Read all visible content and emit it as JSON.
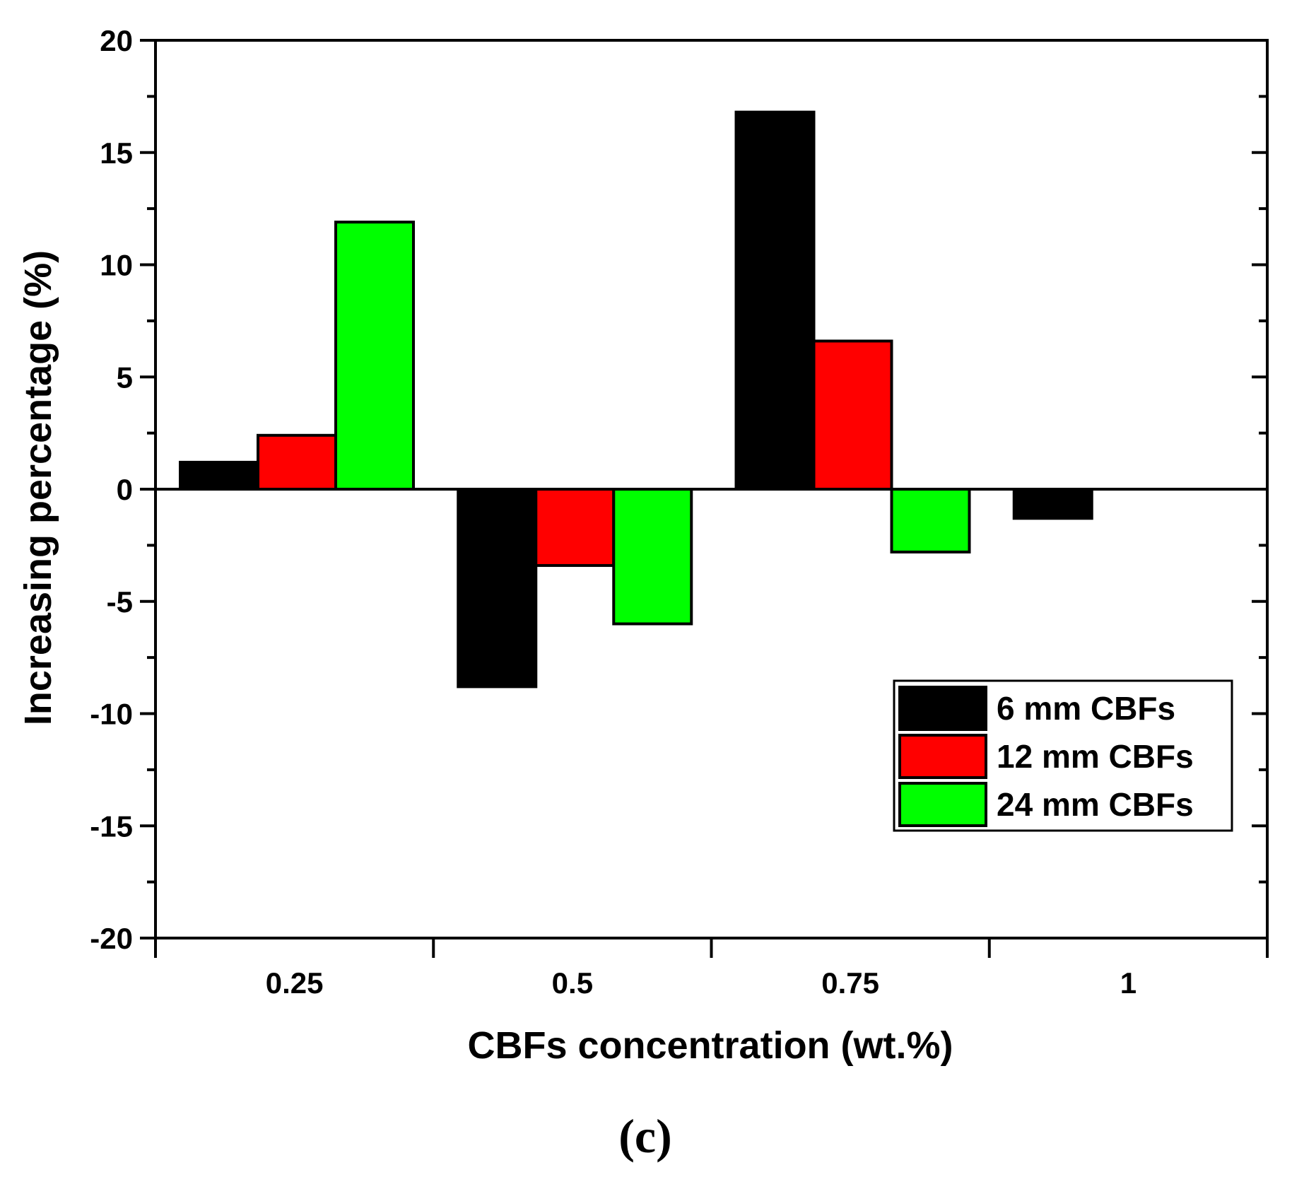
{
  "chart_data": {
    "type": "bar",
    "xlabel": "CBFs concentration (wt.%)",
    "ylabel": "Increasing percentage (%)",
    "panel_label": "(c)",
    "categories": [
      "0.25",
      "0.5",
      "0.75",
      "1"
    ],
    "ylim": [
      -20,
      20
    ],
    "yticks": [
      "20",
      "15",
      "10",
      "5",
      "0",
      "-5",
      "-10",
      "-15",
      "-20"
    ],
    "legend_position": "right",
    "series": [
      {
        "name": "6 mm CBFs",
        "color": "#000000",
        "values": [
          1.2,
          -8.8,
          16.8,
          -1.3
        ]
      },
      {
        "name": "12 mm CBFs",
        "color": "#ff0000",
        "values": [
          2.4,
          -3.4,
          6.6,
          null
        ]
      },
      {
        "name": "24 mm CBFs",
        "color": "#00ff00",
        "values": [
          11.9,
          -6.0,
          -2.8,
          null
        ]
      }
    ]
  }
}
